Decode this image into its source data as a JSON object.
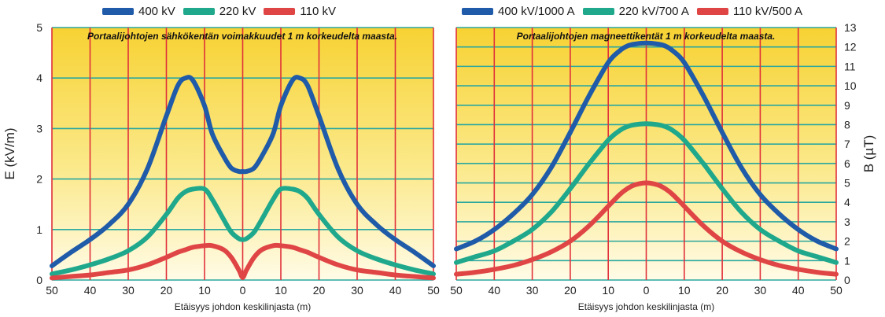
{
  "chart_data": [
    {
      "type": "line",
      "title": "Portaalijohtojen sähkökentän voimakkuudet 1 m korkeudelta maasta.",
      "xlabel": "Etäisyys johdon keskilinjasta (m)",
      "ylabel": "E (kV/m)",
      "xlim": [
        -50,
        50
      ],
      "ylim": [
        0,
        5
      ],
      "x_tick_labels": [
        "50",
        "40",
        "30",
        "20",
        "10",
        "0",
        "10",
        "20",
        "30",
        "40",
        "50"
      ],
      "y_ticks": [
        0,
        1,
        2,
        3,
        4,
        5
      ],
      "grid": true,
      "legend": "top",
      "x": [
        -50,
        -45,
        -40,
        -35,
        -30,
        -25,
        -20,
        -17,
        -15,
        -13,
        -10,
        -8,
        -5,
        -3,
        -1,
        0,
        1,
        3,
        5,
        8,
        10,
        13,
        15,
        17,
        20,
        25,
        30,
        35,
        40,
        45,
        50
      ],
      "series": [
        {
          "name": "400 kV",
          "color": "#1f5ba8",
          "values": [
            0.28,
            0.55,
            0.8,
            1.1,
            1.5,
            2.2,
            3.25,
            3.85,
            4.0,
            3.95,
            3.45,
            2.9,
            2.45,
            2.22,
            2.15,
            2.15,
            2.15,
            2.22,
            2.45,
            2.9,
            3.45,
            3.95,
            4.0,
            3.85,
            3.25,
            2.2,
            1.5,
            1.1,
            0.8,
            0.55,
            0.28
          ]
        },
        {
          "name": "220 kV",
          "color": "#1fa88c",
          "values": [
            0.12,
            0.2,
            0.3,
            0.42,
            0.58,
            0.85,
            1.3,
            1.62,
            1.75,
            1.8,
            1.8,
            1.6,
            1.2,
            0.95,
            0.82,
            0.8,
            0.82,
            0.95,
            1.2,
            1.6,
            1.8,
            1.8,
            1.75,
            1.62,
            1.3,
            0.85,
            0.58,
            0.42,
            0.3,
            0.2,
            0.12
          ]
        },
        {
          "name": "110 kV",
          "color": "#e04545",
          "values": [
            0.04,
            0.07,
            0.1,
            0.15,
            0.2,
            0.3,
            0.45,
            0.55,
            0.6,
            0.65,
            0.68,
            0.68,
            0.6,
            0.45,
            0.2,
            0.05,
            0.2,
            0.45,
            0.6,
            0.68,
            0.68,
            0.65,
            0.6,
            0.55,
            0.45,
            0.3,
            0.2,
            0.15,
            0.1,
            0.07,
            0.04
          ]
        }
      ]
    },
    {
      "type": "line",
      "title": "Portaalijohtojen magneettikentät 1 m korkeudelta maasta.",
      "xlabel": "Etäisyys johdon keskilinjasta (m)",
      "ylabel": "B (µT)",
      "xlim": [
        -50,
        50
      ],
      "ylim": [
        0,
        13
      ],
      "x_tick_labels": [
        "50",
        "40",
        "30",
        "20",
        "10",
        "0",
        "10",
        "20",
        "30",
        "40",
        "50"
      ],
      "y_ticks": [
        0,
        1,
        2,
        3,
        4,
        5,
        6,
        7,
        8,
        9,
        10,
        11,
        12,
        13
      ],
      "grid": true,
      "legend": "top",
      "x": [
        -50,
        -45,
        -40,
        -35,
        -30,
        -25,
        -20,
        -15,
        -10,
        -7,
        -5,
        -3,
        0,
        3,
        5,
        7,
        10,
        15,
        20,
        25,
        30,
        35,
        40,
        45,
        50
      ],
      "series": [
        {
          "name": "400 kV/1000 A",
          "color": "#1f5ba8",
          "values": [
            1.6,
            2.0,
            2.6,
            3.4,
            4.4,
            5.8,
            7.6,
            9.5,
            11.2,
            11.8,
            12.05,
            12.15,
            12.2,
            12.15,
            12.05,
            11.8,
            11.2,
            9.5,
            7.6,
            5.8,
            4.4,
            3.4,
            2.6,
            2.0,
            1.6
          ]
        },
        {
          "name": "220 kV/700 A",
          "color": "#1fa88c",
          "values": [
            0.9,
            1.2,
            1.5,
            2.0,
            2.6,
            3.5,
            4.7,
            6.0,
            7.2,
            7.7,
            7.9,
            8.0,
            8.05,
            8.0,
            7.9,
            7.7,
            7.2,
            6.0,
            4.7,
            3.5,
            2.6,
            2.0,
            1.5,
            1.2,
            0.9
          ]
        },
        {
          "name": "110 kV/500 A",
          "color": "#e04545",
          "values": [
            0.3,
            0.4,
            0.55,
            0.75,
            1.05,
            1.45,
            2.0,
            2.8,
            3.8,
            4.4,
            4.7,
            4.9,
            5.0,
            4.9,
            4.7,
            4.4,
            3.8,
            2.8,
            2.0,
            1.45,
            1.05,
            0.75,
            0.55,
            0.4,
            0.3
          ]
        }
      ]
    }
  ]
}
